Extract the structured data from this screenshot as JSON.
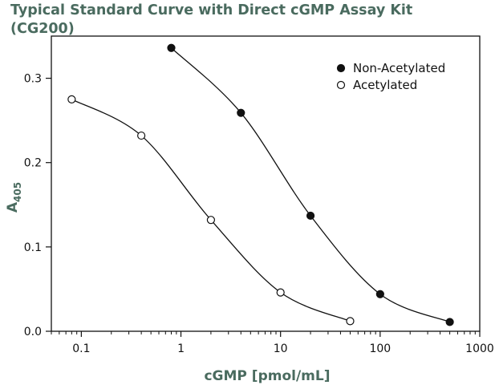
{
  "title_lines": [
    "Typical Standard Curve with Direct cGMP Assay Kit",
    "(CG200)"
  ],
  "chart_data": {
    "type": "scatter",
    "title": "Typical Standard Curve with Direct cGMP Assay Kit (CG200)",
    "xlabel": "cGMP [pmol/mL]",
    "ylabel": "A",
    "ylabel_subscript": "405",
    "x_scale": "log",
    "xlim": [
      0.05,
      1000
    ],
    "ylim": [
      0,
      0.35
    ],
    "x_ticks": [
      0.1,
      1,
      10,
      100,
      1000
    ],
    "x_tick_labels": [
      "0.1",
      "1",
      "10",
      "100",
      "1000"
    ],
    "y_ticks": [
      0,
      0.1,
      0.2,
      0.3
    ],
    "y_tick_labels": [
      "0.0",
      "0.1",
      "0.2",
      "0.3"
    ],
    "grid": false,
    "legend_position": "top-right",
    "series": [
      {
        "name": "Non-Acetylated",
        "marker": "filled-circle",
        "color": "#111111",
        "x": [
          0.8,
          4,
          20,
          100,
          500
        ],
        "y": [
          0.336,
          0.259,
          0.137,
          0.044,
          0.011
        ]
      },
      {
        "name": "Acetylated",
        "marker": "open-circle",
        "color": "#111111",
        "x": [
          0.08,
          0.4,
          2,
          10,
          50
        ],
        "y": [
          0.275,
          0.232,
          0.132,
          0.046,
          0.012
        ]
      }
    ]
  }
}
